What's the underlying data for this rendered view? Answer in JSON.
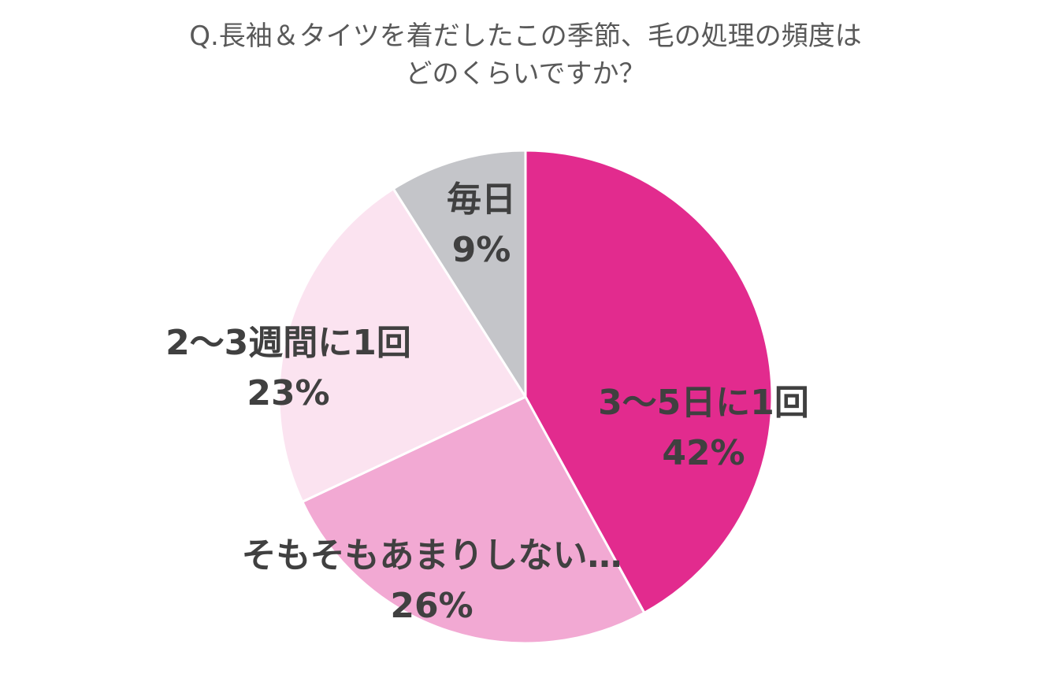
{
  "chart_data": {
    "type": "pie",
    "title_lines": [
      "Q.長袖＆タイツを着だしたこの季節、毛の処理の頻度は",
      "どのくらいですか？"
    ],
    "slices": [
      {
        "label": "3〜5日に1回",
        "value": 42,
        "value_label": "42%",
        "color": "#e22b8e"
      },
      {
        "label": "そもそもあまりしない…",
        "value": 26,
        "value_label": "26%",
        "color": "#f2a9d3"
      },
      {
        "label": "2〜3週間に1回",
        "value": 23,
        "value_label": "23%",
        "color": "#fbe3f0"
      },
      {
        "label": "毎日",
        "value": 9,
        "value_label": "9%",
        "color": "#c4c5c9"
      }
    ],
    "start_angle": "12 o'clock",
    "direction": "clockwise",
    "legend": "none"
  }
}
